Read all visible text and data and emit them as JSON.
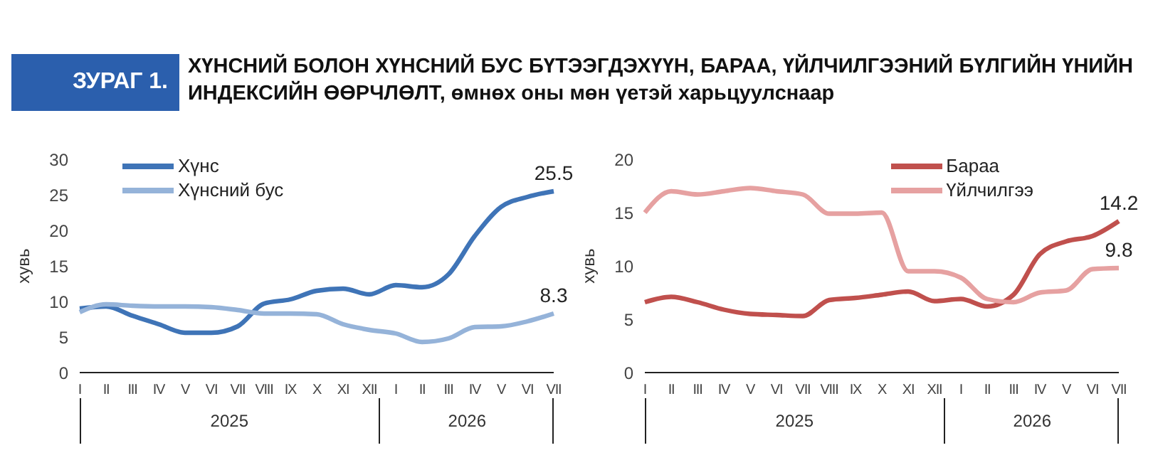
{
  "chart_data": [
    {
      "type": "line",
      "title": "ЗУРАГ 1.",
      "subtitle": "ХҮНСНИЙ БОЛОН ХҮНСНИЙ БУС БҮТЭЭГДЭХҮҮН, БАРАА, ҮЙЛЧИЛГЭЭНИЙ БҮЛГИЙН ҮНИЙН ИНДЕКСИЙН ӨӨРЧЛӨЛТ, өмнөх оны мөн үетэй харьцуулснаар",
      "ylabel": "хувь",
      "categories": [
        "I",
        "II",
        "III",
        "IV",
        "V",
        "VI",
        "VII",
        "VIII",
        "IX",
        "X",
        "XI",
        "XII",
        "I",
        "II",
        "III",
        "IV",
        "V",
        "VI",
        "VII"
      ],
      "annotations": [
        "2025",
        "2026"
      ],
      "ylim": [
        0,
        30
      ],
      "yticks": [
        0,
        5,
        10,
        15,
        20,
        25,
        30
      ],
      "legend": "top left",
      "series": [
        {
          "name": "Хүнс",
          "color": "#3f74b7",
          "values": [
            9.0,
            9.3,
            8.0,
            6.8,
            5.6,
            5.6,
            6.5,
            9.7,
            10.3,
            11.5,
            11.8,
            11.0,
            12.3,
            12.0,
            13.8,
            19.2,
            23.3,
            24.7,
            25.5
          ],
          "value_labels": [
            null,
            null,
            null,
            null,
            null,
            null,
            null,
            null,
            null,
            null,
            null,
            null,
            null,
            null,
            null,
            null,
            null,
            null,
            "25.5"
          ]
        },
        {
          "name": "Хүнсний бус",
          "color": "#95b3d9",
          "values": [
            8.5,
            9.6,
            9.4,
            9.3,
            9.3,
            9.2,
            8.8,
            8.3,
            8.3,
            8.2,
            6.8,
            6.0,
            5.5,
            4.3,
            4.8,
            6.4,
            6.5,
            7.2,
            8.3
          ],
          "value_labels": [
            null,
            null,
            null,
            null,
            null,
            null,
            null,
            null,
            null,
            null,
            null,
            null,
            null,
            null,
            null,
            null,
            null,
            null,
            "8.3"
          ]
        }
      ]
    },
    {
      "type": "line",
      "ylabel": "хувь",
      "categories": [
        "I",
        "II",
        "III",
        "IV",
        "V",
        "VI",
        "VII",
        "VIII",
        "IX",
        "X",
        "XI",
        "XII",
        "I",
        "II",
        "III",
        "IV",
        "V",
        "VI",
        "VII"
      ],
      "annotations": [
        "2025",
        "2026"
      ],
      "ylim": [
        0,
        20
      ],
      "yticks": [
        0,
        5,
        10,
        15,
        20
      ],
      "legend": "top right",
      "series": [
        {
          "name": "Бараа",
          "color": "#c0504d",
          "values": [
            6.6,
            7.1,
            6.6,
            5.9,
            5.5,
            5.4,
            5.3,
            6.8,
            7.0,
            7.3,
            7.6,
            6.7,
            6.9,
            6.2,
            7.3,
            11.1,
            12.3,
            12.8,
            14.2
          ],
          "value_labels": [
            null,
            null,
            null,
            null,
            null,
            null,
            null,
            null,
            null,
            null,
            null,
            null,
            null,
            null,
            null,
            null,
            null,
            null,
            "14.2"
          ]
        },
        {
          "name": "Үйлчилгээ",
          "color": "#e6a1a1",
          "values": [
            15.0,
            17.0,
            16.7,
            17.0,
            17.3,
            17.0,
            16.7,
            14.9,
            14.9,
            15.0,
            9.5,
            9.5,
            8.9,
            6.9,
            6.6,
            7.5,
            7.7,
            9.7,
            9.8
          ],
          "value_labels": [
            null,
            null,
            null,
            null,
            null,
            null,
            null,
            null,
            null,
            null,
            null,
            null,
            null,
            null,
            null,
            null,
            null,
            null,
            "9.8"
          ]
        }
      ]
    }
  ]
}
